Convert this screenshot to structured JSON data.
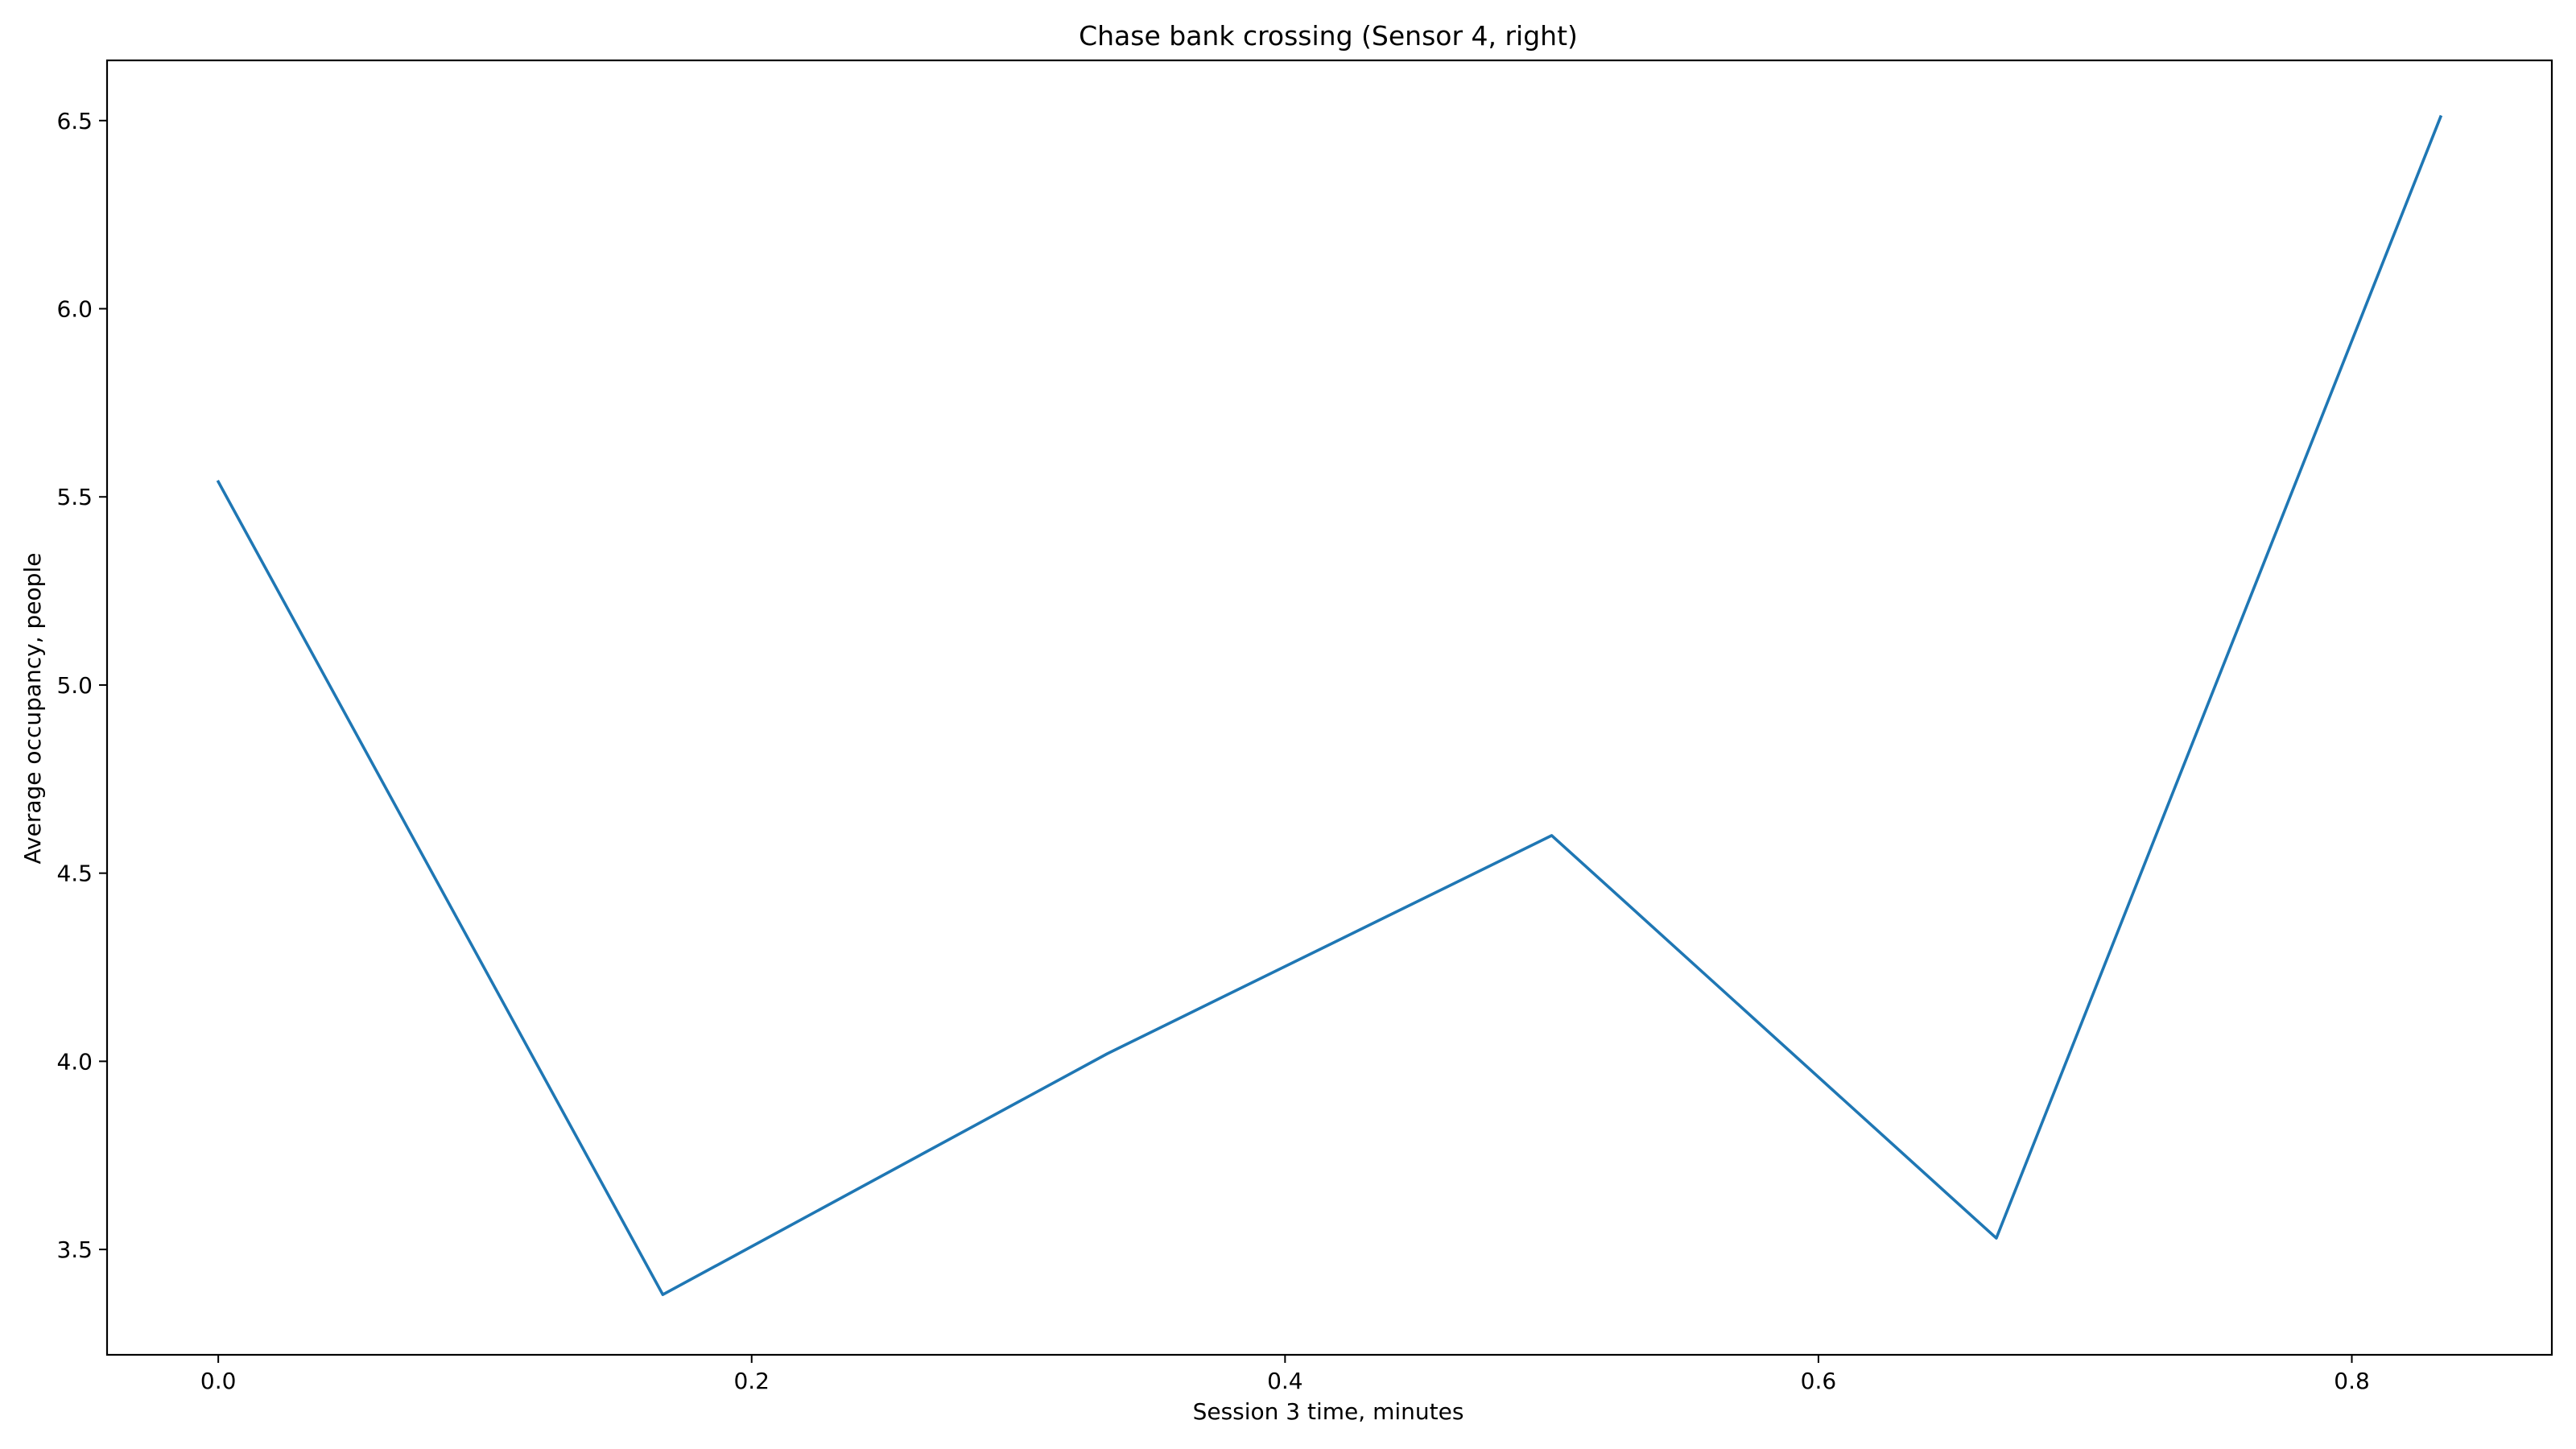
{
  "chart_data": {
    "type": "line",
    "title": "Chase bank crossing (Sensor 4, right)",
    "xlabel": "Session 3 time, minutes",
    "ylabel": "Average occupancy, people",
    "x_ticks": [
      "0.0",
      "0.2",
      "0.4",
      "0.6",
      "0.8"
    ],
    "y_ticks": [
      "3.5",
      "4.0",
      "4.5",
      "5.0",
      "5.5",
      "6.0",
      "6.5"
    ],
    "xlim": [
      -0.0417,
      0.875
    ],
    "ylim": [
      3.22,
      6.66
    ],
    "grid": false,
    "series": [
      {
        "color": "#1f77b4",
        "x": [
          0.0,
          0.1667,
          0.3333,
          0.5,
          0.6667,
          0.8333
        ],
        "y": [
          5.54,
          3.38,
          4.02,
          4.6,
          3.53,
          6.51
        ]
      }
    ]
  }
}
